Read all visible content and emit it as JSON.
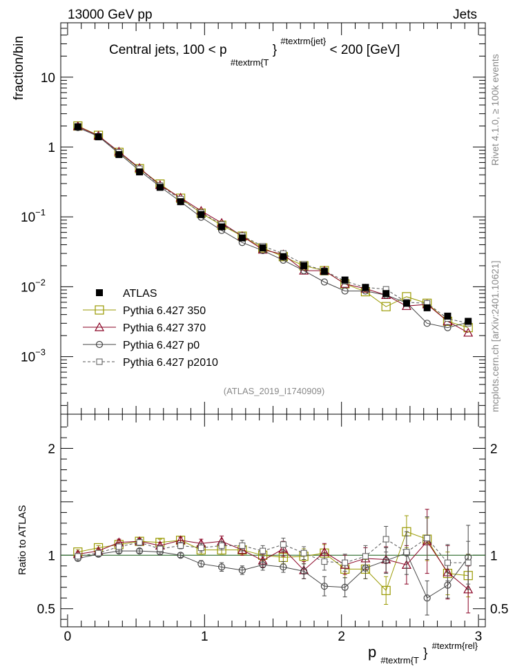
{
  "header": {
    "left": "13000 GeV pp",
    "right": "Jets"
  },
  "side": {
    "rivet": "Rivet 4.1.0, ≥ 100k events",
    "mcplots": "mcplots.cern.ch [arXiv:2401.10621]"
  },
  "watermark": "(ATLAS_2019_I1740909)",
  "chart_data": [
    {
      "type": "scatter",
      "panel": "main",
      "title_parts": {
        "a": "Central jets, 100 < p",
        "sub": "#textrm{T",
        "close": "}",
        "sup": "#textrm{jet}",
        "b": "< 200 [GeV]"
      },
      "ylabel": "fraction/bin",
      "yscale": "log",
      "ylim": [
        0.00015,
        60
      ],
      "xlim": [
        -0.05,
        3.05
      ],
      "yticks": [
        {
          "v": 10,
          "text": "10"
        },
        {
          "v": 1,
          "text": "1"
        },
        {
          "v": 0.1,
          "base": "10",
          "exp": "−1"
        },
        {
          "v": 0.01,
          "base": "10",
          "exp": "−2"
        },
        {
          "v": 0.001,
          "base": "10",
          "exp": "−3"
        }
      ],
      "x": [
        0.075,
        0.225,
        0.375,
        0.525,
        0.675,
        0.825,
        0.975,
        1.125,
        1.275,
        1.425,
        1.575,
        1.725,
        1.875,
        2.025,
        2.175,
        2.325,
        2.475,
        2.625,
        2.775,
        2.925
      ],
      "series": [
        {
          "name": "ATLAS",
          "color": "#000000",
          "marker": "filled-square",
          "values": [
            1.95,
            1.4,
            0.78,
            0.44,
            0.265,
            0.165,
            0.108,
            0.072,
            0.05,
            0.036,
            0.027,
            0.02,
            0.0165,
            0.0125,
            0.0098,
            0.008,
            0.0058,
            0.005,
            0.0038,
            0.0032
          ]
        },
        {
          "name": "Pythia 6.427 350",
          "color": "#999900",
          "marker": "open-square",
          "line": "solid",
          "values": [
            2.0,
            1.47,
            0.84,
            0.49,
            0.295,
            0.185,
            0.113,
            0.076,
            0.053,
            0.036,
            0.027,
            0.02,
            0.017,
            0.011,
            0.0085,
            0.0052,
            0.0072,
            0.0058,
            0.0032,
            0.0026
          ]
        },
        {
          "name": "Pythia 6.427 370",
          "color": "#880022",
          "marker": "open-triangle",
          "line": "solid",
          "values": [
            1.98,
            1.45,
            0.86,
            0.5,
            0.285,
            0.188,
            0.122,
            0.082,
            0.053,
            0.034,
            0.029,
            0.017,
            0.017,
            0.011,
            0.0094,
            0.0076,
            0.0053,
            0.0056,
            0.0032,
            0.0022
          ]
        },
        {
          "name": "Pythia 6.427 p0",
          "color": "#444444",
          "marker": "open-circle",
          "line": "solid",
          "values": [
            1.9,
            1.42,
            0.81,
            0.46,
            0.27,
            0.165,
            0.099,
            0.064,
            0.043,
            0.033,
            0.024,
            0.017,
            0.0117,
            0.0087,
            0.0087,
            0.0076,
            0.0059,
            0.003,
            0.0026,
            0.0031
          ]
        },
        {
          "name": "Pythia 6.427 p2010",
          "color": "#555555",
          "marker": "open-square-small",
          "line": "dashed",
          "values": [
            1.92,
            1.42,
            0.84,
            0.49,
            0.28,
            0.18,
            0.115,
            0.078,
            0.054,
            0.038,
            0.03,
            0.021,
            0.017,
            0.012,
            0.0098,
            0.0092,
            0.006,
            0.0058,
            0.0035,
            0.003
          ]
        }
      ],
      "legend_position": "lower-left"
    },
    {
      "type": "scatter",
      "panel": "ratio",
      "ylabel": "Ratio to ATLAS",
      "xlabel_parts": {
        "main": "p",
        "sub": "#textrm{T",
        "close": "}",
        "sup": "#textrm{rel}"
      },
      "ylim": [
        0.33,
        2.32
      ],
      "xlim": [
        -0.05,
        3.05
      ],
      "yticks": [
        {
          "v": 2,
          "text": "2"
        },
        {
          "v": 1,
          "text": "1"
        },
        {
          "v": 0.5,
          "text": "0.5"
        }
      ],
      "xticks": [
        {
          "v": 0,
          "text": "0"
        },
        {
          "v": 1,
          "text": "1"
        },
        {
          "v": 2,
          "text": "2"
        },
        {
          "v": 3,
          "text": "3"
        }
      ],
      "reference_line": 1,
      "x": [
        0.075,
        0.225,
        0.375,
        0.525,
        0.675,
        0.825,
        0.975,
        1.125,
        1.275,
        1.425,
        1.575,
        1.725,
        1.875,
        2.025,
        2.175,
        2.325,
        2.475,
        2.625,
        2.775,
        2.925
      ],
      "series": [
        {
          "name": "Pythia 6.427 350",
          "color": "#999900",
          "marker": "open-square",
          "line": "solid",
          "values": [
            1.03,
            1.07,
            1.1,
            1.13,
            1.12,
            1.14,
            1.05,
            1.05,
            1.05,
            1.0,
            0.98,
            0.99,
            1.02,
            0.87,
            0.87,
            0.67,
            1.22,
            1.15,
            0.83,
            0.81
          ],
          "errors": [
            0.02,
            0.02,
            0.02,
            0.03,
            0.03,
            0.03,
            0.04,
            0.04,
            0.05,
            0.05,
            0.06,
            0.07,
            0.08,
            0.08,
            0.09,
            0.13,
            0.15,
            0.2,
            0.2,
            0.2
          ]
        },
        {
          "name": "Pythia 6.427 370",
          "color": "#880022",
          "marker": "open-triangle",
          "line": "solid",
          "values": [
            1.01,
            1.04,
            1.12,
            1.13,
            1.09,
            1.14,
            1.11,
            1.13,
            1.05,
            0.95,
            1.06,
            0.86,
            1.03,
            0.91,
            0.97,
            0.96,
            0.91,
            1.13,
            0.84,
            0.68
          ],
          "errors": [
            0.02,
            0.02,
            0.03,
            0.03,
            0.03,
            0.03,
            0.04,
            0.05,
            0.05,
            0.06,
            0.07,
            0.08,
            0.08,
            0.09,
            0.1,
            0.12,
            0.18,
            0.3,
            0.25,
            0.22
          ]
        },
        {
          "name": "Pythia 6.427 p0",
          "color": "#444444",
          "marker": "open-circle",
          "line": "solid",
          "values": [
            0.97,
            1.01,
            1.04,
            1.04,
            1.03,
            1.0,
            0.92,
            0.89,
            0.86,
            0.91,
            0.89,
            0.85,
            0.71,
            0.7,
            0.88,
            0.95,
            1.02,
            0.6,
            0.72,
            0.98
          ],
          "errors": [
            0.02,
            0.02,
            0.02,
            0.02,
            0.02,
            0.02,
            0.03,
            0.04,
            0.04,
            0.05,
            0.05,
            0.07,
            0.09,
            0.09,
            0.1,
            0.12,
            0.2,
            0.16,
            0.12,
            0.3
          ]
        },
        {
          "name": "Pythia 6.427 p2010",
          "color": "#555555",
          "marker": "open-square-small",
          "line": "dashed",
          "values": [
            0.99,
            1.02,
            1.08,
            1.12,
            1.06,
            1.09,
            1.07,
            1.09,
            1.09,
            1.04,
            1.1,
            1.02,
            0.94,
            0.93,
            0.99,
            1.15,
            1.03,
            1.16,
            0.93,
            0.93
          ],
          "errors": [
            0.02,
            0.02,
            0.02,
            0.03,
            0.03,
            0.03,
            0.04,
            0.04,
            0.05,
            0.05,
            0.06,
            0.06,
            0.08,
            0.08,
            0.1,
            0.12,
            0.15,
            0.2,
            0.17,
            0.2
          ]
        }
      ]
    }
  ]
}
